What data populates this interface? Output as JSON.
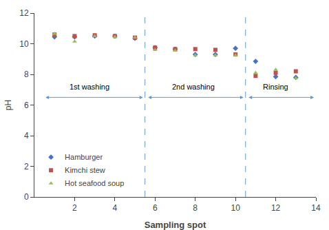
{
  "chart_data": {
    "type": "scatter",
    "xlabel": "Sampling spot",
    "ylabel": "pH",
    "xlim": [
      0,
      14
    ],
    "ylim": [
      0,
      12
    ],
    "xticks": [
      2,
      4,
      6,
      8,
      10,
      12,
      14
    ],
    "yticks": [
      0,
      2,
      4,
      6,
      8,
      10,
      12
    ],
    "grid": false,
    "legend": "lower left",
    "series": [
      {
        "name": "Hamburger",
        "color": "#4472C4",
        "marker": "diamond",
        "x": [
          1,
          2,
          3,
          4,
          5,
          6,
          7,
          8,
          9,
          10,
          11,
          12,
          13
        ],
        "values": [
          10.45,
          10.45,
          10.5,
          10.5,
          10.35,
          9.75,
          9.65,
          9.3,
          9.3,
          9.7,
          8.85,
          7.85,
          7.8
        ]
      },
      {
        "name": "Kimchi stew",
        "color": "#C0504D",
        "marker": "square",
        "x": [
          1,
          2,
          3,
          4,
          5,
          6,
          7,
          8,
          9,
          10,
          11,
          12,
          13
        ],
        "values": [
          10.6,
          10.5,
          10.55,
          10.5,
          10.4,
          9.75,
          9.65,
          9.65,
          9.6,
          9.3,
          7.9,
          8.1,
          8.2
        ]
      },
      {
        "name": "Hot seafood soup",
        "color": "#9BBB59",
        "marker": "triangle-up",
        "x": [
          1,
          2,
          3,
          4,
          5,
          6,
          7,
          8,
          9,
          10,
          11,
          12,
          13
        ],
        "values": [
          10.65,
          10.15,
          10.5,
          10.45,
          10.4,
          9.6,
          9.55,
          9.25,
          9.25,
          9.25,
          8.1,
          8.3,
          7.75
        ]
      }
    ],
    "vlines": {
      "x": [
        5.5,
        10.5
      ],
      "color": "#5B9BD5",
      "line_style": "dashed"
    },
    "arrows": {
      "y": 6.5,
      "color": "#5B9BD5",
      "spans": [
        {
          "x1": 0.5,
          "x2": 5.4
        },
        {
          "x1": 5.6,
          "x2": 10.4
        },
        {
          "x1": 10.6,
          "x2": 13.9
        }
      ]
    },
    "annotations": [
      {
        "text": "1st washing",
        "x": 2.75,
        "y": 7.2
      },
      {
        "text": "2nd washing",
        "x": 7.9,
        "y": 7.2
      },
      {
        "text": "Rinsing",
        "x": 12.0,
        "y": 7.2
      }
    ]
  }
}
